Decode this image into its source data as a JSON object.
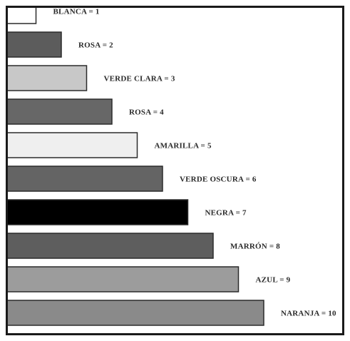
{
  "chart_data": {
    "type": "bar",
    "orientation": "horizontal",
    "categories": [
      "BLANCA = 1",
      "ROSA = 2",
      "VERDE CLARA = 3",
      "ROSA = 4",
      "AMARILLA = 5",
      "VERDE OSCURA = 6",
      "NEGRA = 7",
      "MARRÓN = 8",
      "AZUL = 9",
      "NARANJA = 10"
    ],
    "values": [
      1,
      2,
      3,
      4,
      5,
      6,
      7,
      8,
      9,
      10
    ],
    "colors": [
      "#ffffff",
      "#5c5c5c",
      "#c8c8c8",
      "#676767",
      "#efefef",
      "#646464",
      "#000000",
      "#5e5e5e",
      "#9c9c9c",
      "#8a8a8a"
    ],
    "title": "",
    "xlabel": "",
    "ylabel": "",
    "grid": false,
    "legend": "none"
  }
}
